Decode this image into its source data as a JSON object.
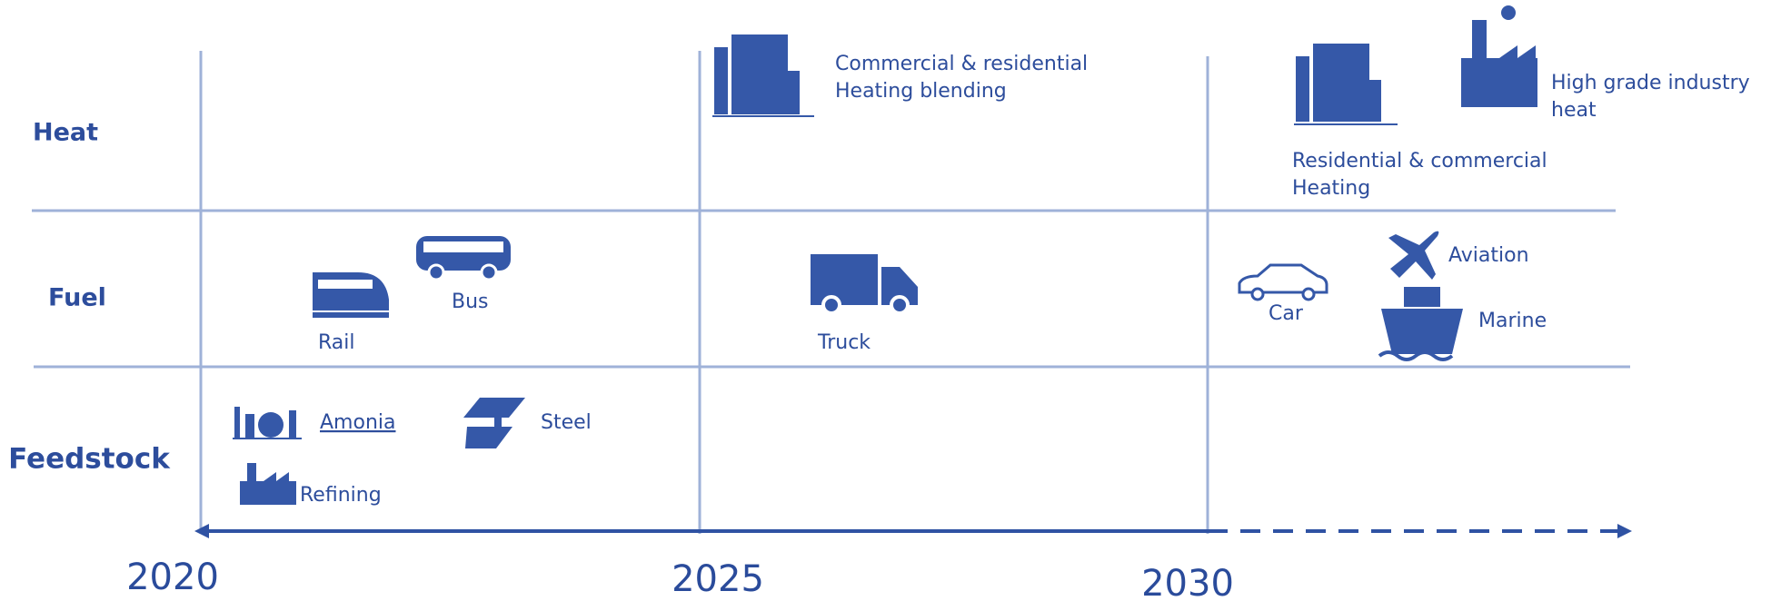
{
  "rows": [
    {
      "label": "Heat"
    },
    {
      "label": "Fuel"
    },
    {
      "label": "Feedstock"
    }
  ],
  "years": [
    "2020",
    "2025",
    "2030"
  ],
  "items": [
    {
      "lines": [
        "Commercial & residential",
        "Heating blending"
      ]
    },
    {
      "lines": [
        "Residential & commercial",
        "Heating"
      ]
    },
    {
      "lines": [
        "High grade industry",
        "heat"
      ]
    },
    {
      "lines": [
        "Bus"
      ]
    },
    {
      "lines": [
        "Rail"
      ]
    },
    {
      "lines": [
        "Truck"
      ]
    },
    {
      "lines": [
        "Car"
      ]
    },
    {
      "lines": [
        "Aviation"
      ]
    },
    {
      "lines": [
        "Marine"
      ]
    },
    {
      "lines": [
        "Amonia"
      ]
    },
    {
      "lines": [
        "Steel"
      ]
    },
    {
      "lines": [
        "Refining"
      ]
    }
  ]
}
